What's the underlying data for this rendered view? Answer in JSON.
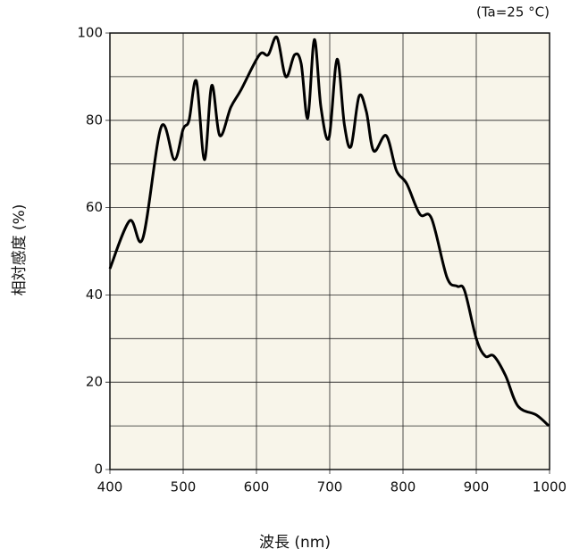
{
  "chart_data": {
    "type": "line",
    "annotation": "(Ta=25 °C)",
    "xlabel": "波長 (nm)",
    "ylabel": "相対感度 (%)",
    "xlim": [
      400,
      1000
    ],
    "xticks": [
      400,
      500,
      600,
      700,
      800,
      900,
      1000
    ],
    "ylim": [
      0,
      100
    ],
    "yticks": [
      0,
      20,
      40,
      60,
      80,
      100
    ],
    "yminor": [
      10,
      30,
      50,
      70,
      90
    ],
    "grid": true,
    "background": "#f8f5ea",
    "series": [
      {
        "color": "#000000",
        "x": [
          400,
          427,
          445,
          470,
          488,
          500,
          508,
          518,
          529,
          539,
          550,
          565,
          579,
          604,
          616,
          628,
          640,
          652,
          661,
          670,
          679,
          688,
          699,
          710,
          720,
          729,
          740,
          750,
          760,
          777,
          791,
          805,
          823,
          839,
          860,
          874,
          884,
          900,
          912,
          924,
          940,
          957,
          982,
          999
        ],
        "values": [
          46,
          57,
          53,
          78.5,
          71,
          78,
          80,
          89,
          71,
          88,
          76.5,
          83,
          87,
          95,
          95,
          99,
          90,
          95,
          93,
          80.5,
          98.5,
          83,
          76,
          94,
          79,
          74,
          85.5,
          82,
          73,
          76.5,
          68.5,
          65.5,
          58.5,
          57.5,
          44,
          42,
          41,
          30,
          26,
          26,
          21.5,
          14.5,
          12.5,
          10
        ]
      }
    ]
  }
}
